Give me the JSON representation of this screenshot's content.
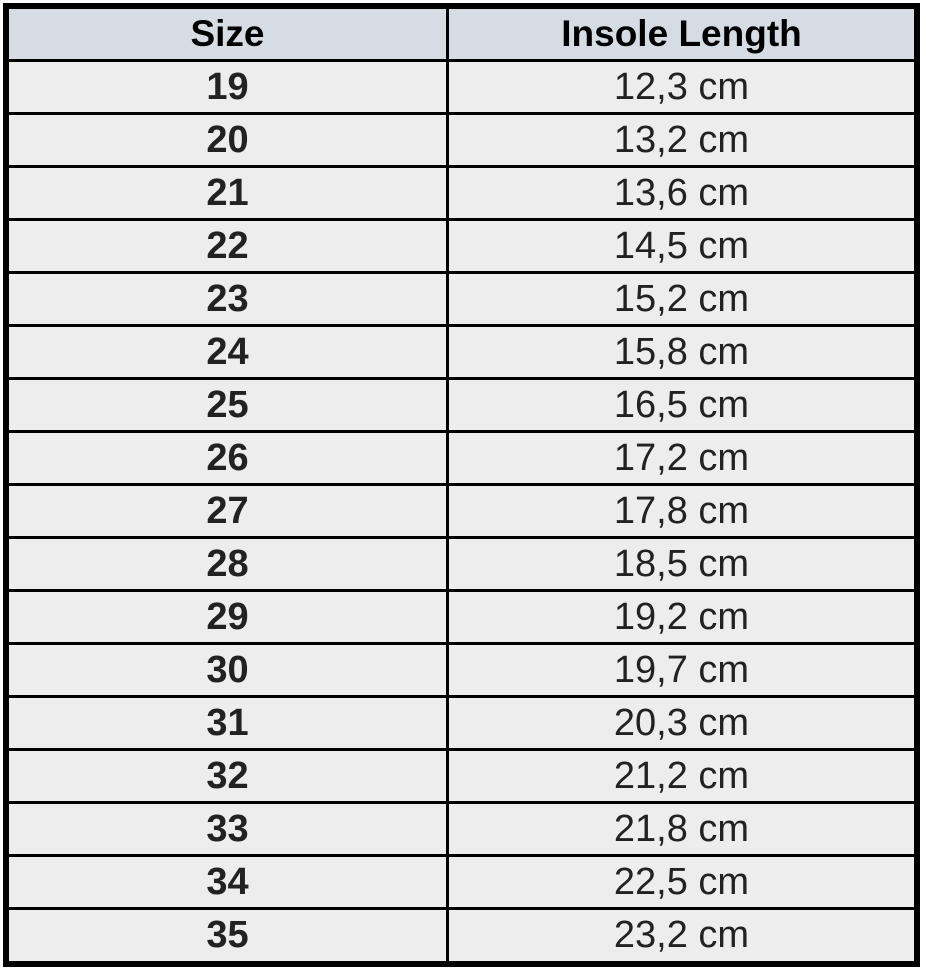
{
  "table": {
    "headers": [
      "Size",
      "Insole Length"
    ],
    "rows": [
      [
        "19",
        "12,3 cm"
      ],
      [
        "20",
        "13,2 cm"
      ],
      [
        "21",
        "13,6 cm"
      ],
      [
        "22",
        "14,5 cm"
      ],
      [
        "23",
        "15,2 cm"
      ],
      [
        "24",
        "15,8 cm"
      ],
      [
        "25",
        "16,5 cm"
      ],
      [
        "26",
        "17,2 cm"
      ],
      [
        "27",
        "17,8 cm"
      ],
      [
        "28",
        "18,5 cm"
      ],
      [
        "29",
        "19,2 cm"
      ],
      [
        "30",
        "19,7 cm"
      ],
      [
        "31",
        "20,3 cm"
      ],
      [
        "32",
        "21,2 cm"
      ],
      [
        "33",
        "21,8 cm"
      ],
      [
        "34",
        "22,5 cm"
      ],
      [
        "35",
        "23,2 cm"
      ]
    ]
  },
  "colors": {
    "header_bg": "#d6dce4",
    "row_bg": "#ededed",
    "border": "#000000"
  }
}
